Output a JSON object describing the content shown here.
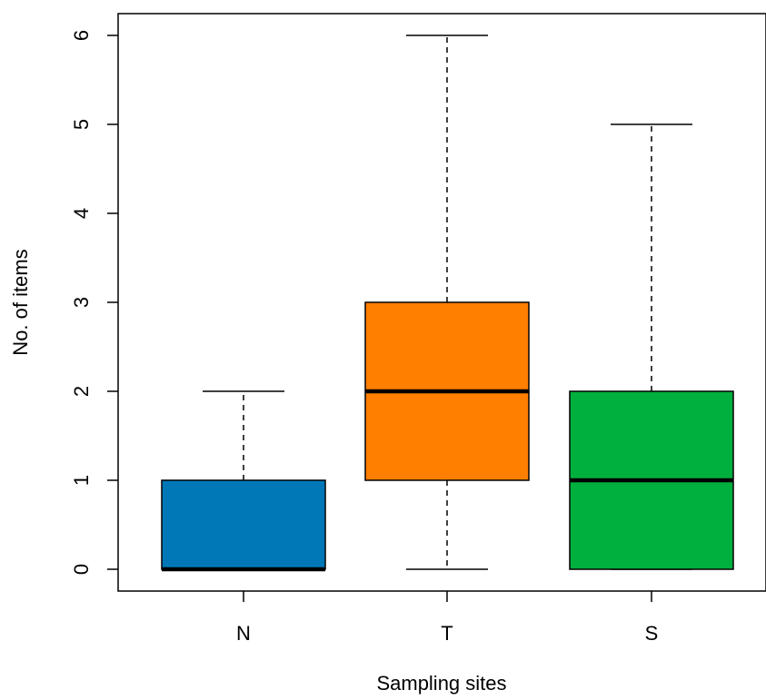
{
  "chart_data": {
    "type": "boxplot",
    "title": "",
    "xlabel": "Sampling sites",
    "ylabel": "No. of items",
    "ylim": [
      -0.25,
      6.25
    ],
    "yticks": [
      0,
      1,
      2,
      3,
      4,
      5,
      6
    ],
    "ytick_labels": [
      "0",
      "1",
      "2",
      "3",
      "4",
      "5",
      "6"
    ],
    "grid": false,
    "boxes": [
      {
        "category": "N",
        "min": 0,
        "q1": 0,
        "median": 0,
        "q3": 1,
        "max": 2,
        "color": "#0078B8"
      },
      {
        "category": "T",
        "min": 0,
        "q1": 1,
        "median": 2,
        "q3": 3,
        "max": 6,
        "color": "#FF7F00"
      },
      {
        "category": "S",
        "min": 0,
        "q1": 0,
        "median": 1,
        "q3": 2,
        "max": 5,
        "color": "#00B03F"
      }
    ]
  }
}
